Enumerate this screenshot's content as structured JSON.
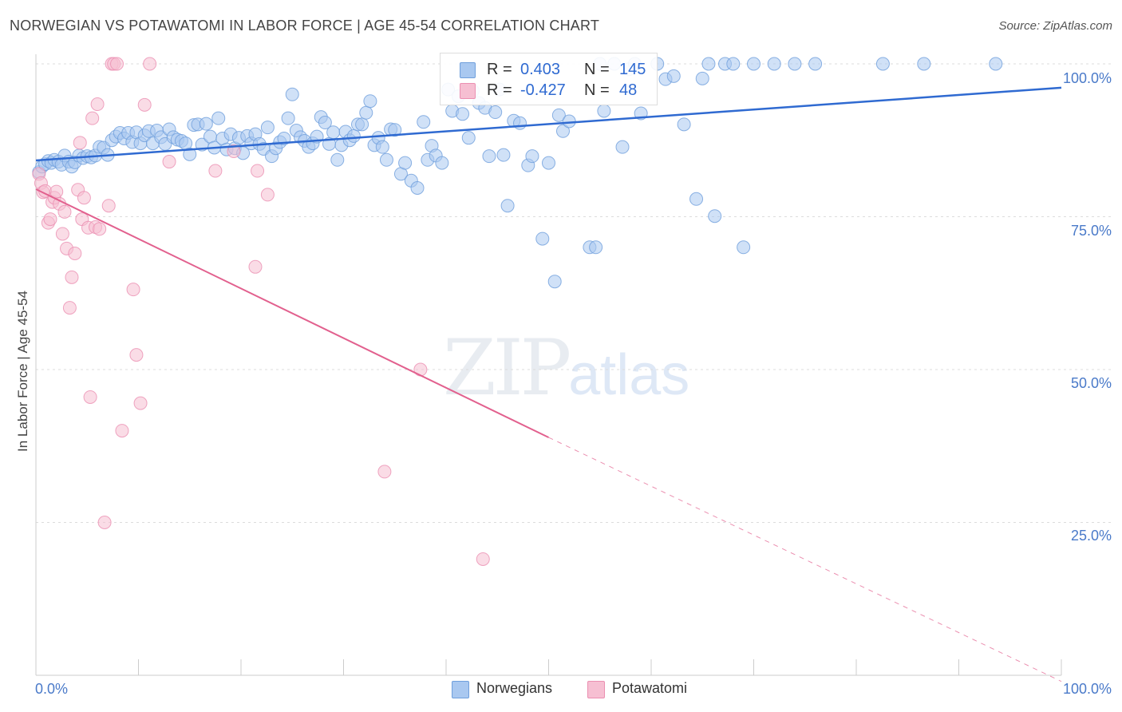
{
  "title": "NORWEGIAN VS POTAWATOMI IN LABOR FORCE | AGE 45-54 CORRELATION CHART",
  "source": "Source: ZipAtlas.com",
  "watermark": {
    "zip": "ZIP",
    "atlas": "atlas"
  },
  "colors": {
    "blue_fill": "#a9c8f0",
    "blue_stroke": "#6f9fdc",
    "blue_line": "#2f6ad1",
    "pink_fill": "#f6bfd2",
    "pink_stroke": "#eb8fb1",
    "pink_line": "#e2608e",
    "grid": "#dcdcdc",
    "tick_text": "#4a7ac9"
  },
  "legend": {
    "rows": [
      {
        "name": "Norwegians",
        "r_label": "R =",
        "r_value": "0.403",
        "n_label": "N =",
        "n_value": "145"
      },
      {
        "name": "Potawatomi",
        "r_label": "R =",
        "r_value": "-0.427",
        "n_label": "N =",
        "n_value": "48"
      }
    ]
  },
  "chart_data": {
    "type": "scatter",
    "title": "NORWEGIAN VS POTAWATOMI IN LABOR FORCE | AGE 45-54 CORRELATION CHART",
    "xlabel": "",
    "ylabel": "In Labor Force | Age 45-54",
    "xlim": [
      0,
      100
    ],
    "ylim": [
      0,
      100
    ],
    "x_tick_labels": [
      "0.0%",
      "100.0%"
    ],
    "y_tick_labels": [
      "25.0%",
      "50.0%",
      "75.0%",
      "100.0%"
    ],
    "y_ticks": [
      25,
      50,
      75,
      100
    ],
    "grid": true,
    "legend_position": "top-center",
    "series": [
      {
        "name": "Norwegians",
        "color": "#a9c8f0",
        "trend": {
          "x": [
            0,
            100
          ],
          "y": [
            84.2,
            96.1
          ],
          "style": "solid"
        },
        "points": [
          [
            0.3,
            82.3
          ],
          [
            0.6,
            83.2
          ],
          [
            0.9,
            83.6
          ],
          [
            1.2,
            84.1
          ],
          [
            1.5,
            83.8
          ],
          [
            1.8,
            84.3
          ],
          [
            2.2,
            84.0
          ],
          [
            2.5,
            83.5
          ],
          [
            2.8,
            85.0
          ],
          [
            3.2,
            84.0
          ],
          [
            3.5,
            83.2
          ],
          [
            3.8,
            83.9
          ],
          [
            4.2,
            85.0
          ],
          [
            4.6,
            84.6
          ],
          [
            5.0,
            84.9
          ],
          [
            5.4,
            84.7
          ],
          [
            5.8,
            85.0
          ],
          [
            6.2,
            86.4
          ],
          [
            6.6,
            86.3
          ],
          [
            7.0,
            85.1
          ],
          [
            7.4,
            87.5
          ],
          [
            7.8,
            88.1
          ],
          [
            8.2,
            88.7
          ],
          [
            8.6,
            87.8
          ],
          [
            9.0,
            88.7
          ],
          [
            9.4,
            87.2
          ],
          [
            9.8,
            88.8
          ],
          [
            10.2,
            87.0
          ],
          [
            10.6,
            88.3
          ],
          [
            11.0,
            89.0
          ],
          [
            11.4,
            87.0
          ],
          [
            11.8,
            89.1
          ],
          [
            12.2,
            88.0
          ],
          [
            12.6,
            86.9
          ],
          [
            13.0,
            89.3
          ],
          [
            13.4,
            88.0
          ],
          [
            13.8,
            87.6
          ],
          [
            14.2,
            87.4
          ],
          [
            14.6,
            87.0
          ],
          [
            15.0,
            85.2
          ],
          [
            15.4,
            90.0
          ],
          [
            15.8,
            90.1
          ],
          [
            16.2,
            86.8
          ],
          [
            16.6,
            90.2
          ],
          [
            17.0,
            88.1
          ],
          [
            17.4,
            86.3
          ],
          [
            17.8,
            91.1
          ],
          [
            18.2,
            87.8
          ],
          [
            18.6,
            86.0
          ],
          [
            19.0,
            88.5
          ],
          [
            19.4,
            86.2
          ],
          [
            19.8,
            87.9
          ],
          [
            20.2,
            85.4
          ],
          [
            20.6,
            88.2
          ],
          [
            21.0,
            87.0
          ],
          [
            21.4,
            88.5
          ],
          [
            21.8,
            86.9
          ],
          [
            22.2,
            86.1
          ],
          [
            22.6,
            89.6
          ],
          [
            23.0,
            84.9
          ],
          [
            23.4,
            86.2
          ],
          [
            23.8,
            87.2
          ],
          [
            24.2,
            87.8
          ],
          [
            24.6,
            91.1
          ],
          [
            25.0,
            95.0
          ],
          [
            25.4,
            89.1
          ],
          [
            25.8,
            88.0
          ],
          [
            26.2,
            87.4
          ],
          [
            26.6,
            86.4
          ],
          [
            27.0,
            87.0
          ],
          [
            27.4,
            88.1
          ],
          [
            27.8,
            91.3
          ],
          [
            28.2,
            90.4
          ],
          [
            28.6,
            86.9
          ],
          [
            29.0,
            88.8
          ],
          [
            29.4,
            84.3
          ],
          [
            29.8,
            86.7
          ],
          [
            30.2,
            88.9
          ],
          [
            30.6,
            87.5
          ],
          [
            31.0,
            88.2
          ],
          [
            31.4,
            90.1
          ],
          [
            31.8,
            90.1
          ],
          [
            32.2,
            92.0
          ],
          [
            32.6,
            93.9
          ],
          [
            33.0,
            86.7
          ],
          [
            33.4,
            87.9
          ],
          [
            33.8,
            86.4
          ],
          [
            34.2,
            84.3
          ],
          [
            34.6,
            89.3
          ],
          [
            35.0,
            89.2
          ],
          [
            35.6,
            82.0
          ],
          [
            36.0,
            83.8
          ],
          [
            36.6,
            80.9
          ],
          [
            37.2,
            79.7
          ],
          [
            37.8,
            90.5
          ],
          [
            38.2,
            84.3
          ],
          [
            38.6,
            86.6
          ],
          [
            39.0,
            85.0
          ],
          [
            39.6,
            83.8
          ],
          [
            40.2,
            95.8
          ],
          [
            40.6,
            92.3
          ],
          [
            41.2,
            94.7
          ],
          [
            41.6,
            91.8
          ],
          [
            42.2,
            87.9
          ],
          [
            42.6,
            95.6
          ],
          [
            43.2,
            93.6
          ],
          [
            43.8,
            92.8
          ],
          [
            44.2,
            84.9
          ],
          [
            44.8,
            92.1
          ],
          [
            45.2,
            95.8
          ],
          [
            45.6,
            85.1
          ],
          [
            46.0,
            76.8
          ],
          [
            46.6,
            90.7
          ],
          [
            47.2,
            90.3
          ],
          [
            48.0,
            83.4
          ],
          [
            48.4,
            84.9
          ],
          [
            49.4,
            71.4
          ],
          [
            50.0,
            83.8
          ],
          [
            50.6,
            64.4
          ],
          [
            51.0,
            91.6
          ],
          [
            51.4,
            89.0
          ],
          [
            52.0,
            90.6
          ],
          [
            54.0,
            70.0
          ],
          [
            54.6,
            70.0
          ],
          [
            55.0,
            100
          ],
          [
            55.4,
            92.3
          ],
          [
            56.4,
            100
          ],
          [
            57.2,
            86.4
          ],
          [
            57.8,
            99.1
          ],
          [
            58.4,
            100
          ],
          [
            59.0,
            91.9
          ],
          [
            60.6,
            100
          ],
          [
            61.4,
            97.5
          ],
          [
            62.2,
            98.0
          ],
          [
            63.2,
            90.1
          ],
          [
            64.4,
            77.9
          ],
          [
            65.0,
            97.6
          ],
          [
            65.6,
            100
          ],
          [
            66.2,
            75.1
          ],
          [
            67.2,
            100
          ],
          [
            68.0,
            100
          ],
          [
            69.0,
            70.0
          ],
          [
            70.0,
            100
          ],
          [
            72.0,
            100
          ],
          [
            74.0,
            100
          ],
          [
            76.0,
            100
          ],
          [
            82.6,
            100
          ],
          [
            86.6,
            100
          ],
          [
            93.6,
            100
          ]
        ]
      },
      {
        "name": "Potawatomi",
        "color": "#f6bfd2",
        "trend": {
          "x": [
            0,
            50
          ],
          "y": [
            79.5,
            38.9
          ],
          "style": "solid",
          "extended_to": [
            100,
            -1.0
          ],
          "extended_style": "dashed"
        },
        "points": [
          [
            0.3,
            82.0
          ],
          [
            0.5,
            80.5
          ],
          [
            0.7,
            79.0
          ],
          [
            0.9,
            79.2
          ],
          [
            1.2,
            74.0
          ],
          [
            1.4,
            74.6
          ],
          [
            1.6,
            77.4
          ],
          [
            1.8,
            78.1
          ],
          [
            2.0,
            79.1
          ],
          [
            2.3,
            77.1
          ],
          [
            2.6,
            72.2
          ],
          [
            2.8,
            75.8
          ],
          [
            3.0,
            69.8
          ],
          [
            3.3,
            60.1
          ],
          [
            3.5,
            65.1
          ],
          [
            3.8,
            69.0
          ],
          [
            4.1,
            79.4
          ],
          [
            4.3,
            87.1
          ],
          [
            4.5,
            74.6
          ],
          [
            4.7,
            78.1
          ],
          [
            5.1,
            73.2
          ],
          [
            5.3,
            45.5
          ],
          [
            5.5,
            91.1
          ],
          [
            5.8,
            73.3
          ],
          [
            6.0,
            93.4
          ],
          [
            6.2,
            73.0
          ],
          [
            6.7,
            25.0
          ],
          [
            7.1,
            76.8
          ],
          [
            7.4,
            100
          ],
          [
            7.6,
            100
          ],
          [
            7.9,
            100
          ],
          [
            8.4,
            40.0
          ],
          [
            9.5,
            63.1
          ],
          [
            9.8,
            52.4
          ],
          [
            10.2,
            44.5
          ],
          [
            10.6,
            93.3
          ],
          [
            11.1,
            100
          ],
          [
            13.0,
            84.0
          ],
          [
            17.5,
            82.5
          ],
          [
            19.3,
            85.7
          ],
          [
            21.4,
            66.8
          ],
          [
            21.6,
            82.5
          ],
          [
            22.6,
            78.6
          ],
          [
            34.0,
            33.3
          ],
          [
            37.5,
            50.0
          ],
          [
            43.6,
            19.0
          ]
        ]
      }
    ]
  }
}
